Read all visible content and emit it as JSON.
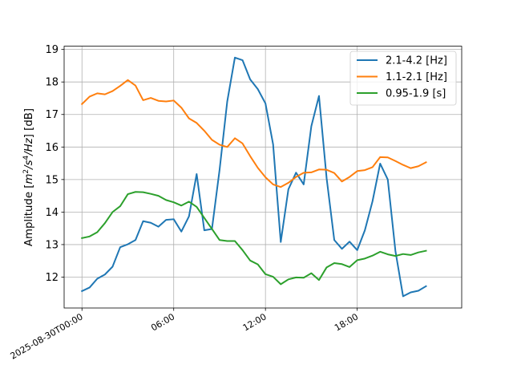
{
  "chart_data": {
    "type": "line",
    "title": "",
    "xlabel": "",
    "ylabel_parts": [
      "Amplitude [",
      "m",
      "2",
      "/",
      "s",
      "4",
      "/",
      "Hz",
      "] [dB]"
    ],
    "xlim": [
      "2025-08-29T22:50",
      "2025-08-31T00:50"
    ],
    "ylim": [
      11.05,
      19.1
    ],
    "grid": true,
    "legend_position": "top-right",
    "x_ticks": [
      {
        "t": "2025-08-30T00:00",
        "label": "2025-08-30T00:00"
      },
      {
        "t": "2025-08-30T06:00",
        "label": "06:00"
      },
      {
        "t": "2025-08-30T12:00",
        "label": "12:00"
      },
      {
        "t": "2025-08-30T18:00",
        "label": "18:00"
      }
    ],
    "y_ticks": [
      {
        "v": 12,
        "label": "12"
      },
      {
        "v": 13,
        "label": "13"
      },
      {
        "v": 14,
        "label": "14"
      },
      {
        "v": 15,
        "label": "15"
      },
      {
        "v": 16,
        "label": "16"
      },
      {
        "v": 17,
        "label": "17"
      },
      {
        "v": 18,
        "label": "18"
      },
      {
        "v": 19,
        "label": "19"
      }
    ],
    "x": [
      "2025-08-30T00:00",
      "2025-08-30T00:30",
      "2025-08-30T01:00",
      "2025-08-30T01:30",
      "2025-08-30T02:00",
      "2025-08-30T02:30",
      "2025-08-30T03:00",
      "2025-08-30T03:30",
      "2025-08-30T04:00",
      "2025-08-30T04:30",
      "2025-08-30T05:00",
      "2025-08-30T05:30",
      "2025-08-30T06:00",
      "2025-08-30T06:30",
      "2025-08-30T07:00",
      "2025-08-30T07:30",
      "2025-08-30T08:00",
      "2025-08-30T08:30",
      "2025-08-30T09:00",
      "2025-08-30T09:30",
      "2025-08-30T10:00",
      "2025-08-30T10:30",
      "2025-08-30T11:00",
      "2025-08-30T11:30",
      "2025-08-30T12:00",
      "2025-08-30T12:30",
      "2025-08-30T13:00",
      "2025-08-30T13:30",
      "2025-08-30T14:00",
      "2025-08-30T14:30",
      "2025-08-30T15:00",
      "2025-08-30T15:30",
      "2025-08-30T16:00",
      "2025-08-30T16:30",
      "2025-08-30T17:00",
      "2025-08-30T17:30",
      "2025-08-30T18:00",
      "2025-08-30T18:30",
      "2025-08-30T19:00",
      "2025-08-30T19:30",
      "2025-08-30T20:00",
      "2025-08-30T20:30",
      "2025-08-30T21:00",
      "2025-08-30T21:30",
      "2025-08-30T22:00",
      "2025-08-30T22:30"
    ],
    "series": [
      {
        "name": "2.1-4.2 [Hz]",
        "color": "#1f77b4",
        "values": [
          11.57,
          11.68,
          11.95,
          12.08,
          12.32,
          12.92,
          13.01,
          13.14,
          13.72,
          13.67,
          13.55,
          13.76,
          13.78,
          13.4,
          13.87,
          15.17,
          13.44,
          13.48,
          15.3,
          17.4,
          18.75,
          18.67,
          18.08,
          17.78,
          17.34,
          16.08,
          13.08,
          14.7,
          15.21,
          14.85,
          16.64,
          17.57,
          15.04,
          13.14,
          12.87,
          13.09,
          12.83,
          13.44,
          14.33,
          15.49,
          15.0,
          12.8,
          11.41,
          11.53,
          11.58,
          11.72
        ]
      },
      {
        "name": "1.1-2.1 [Hz]",
        "color": "#ff7f0e",
        "values": [
          17.32,
          17.55,
          17.65,
          17.62,
          17.72,
          17.88,
          18.06,
          17.89,
          17.44,
          17.51,
          17.42,
          17.4,
          17.43,
          17.21,
          16.88,
          16.74,
          16.5,
          16.22,
          16.07,
          16.0,
          16.27,
          16.11,
          15.72,
          15.36,
          15.07,
          14.85,
          14.77,
          14.9,
          15.08,
          15.21,
          15.22,
          15.31,
          15.3,
          15.2,
          14.94,
          15.08,
          15.26,
          15.29,
          15.38,
          15.69,
          15.68,
          15.57,
          15.45,
          15.35,
          15.41,
          15.53
        ]
      },
      {
        "name": "0.95-1.9 [s]",
        "color": "#2ca02c",
        "values": [
          13.2,
          13.25,
          13.38,
          13.66,
          14.0,
          14.18,
          14.55,
          14.62,
          14.61,
          14.56,
          14.5,
          14.37,
          14.3,
          14.2,
          14.32,
          14.16,
          13.82,
          13.48,
          13.14,
          13.11,
          13.11,
          12.83,
          12.51,
          12.39,
          12.09,
          12.01,
          11.78,
          11.93,
          11.99,
          11.98,
          12.12,
          11.91,
          12.3,
          12.43,
          12.4,
          12.31,
          12.52,
          12.57,
          12.66,
          12.78,
          12.7,
          12.65,
          12.71,
          12.68,
          12.76,
          12.81
        ]
      }
    ]
  }
}
